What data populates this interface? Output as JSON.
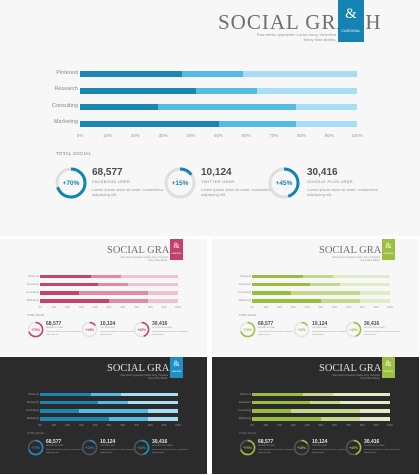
{
  "title": "SOCIAL GRAPH",
  "subtitle": "Raw denim typewriter Carles irony, Helvetica Teeny Nice Bobby.",
  "badge": {
    "symbol": "&",
    "name": "CARDINAL"
  },
  "rows": [
    "Pinterest",
    "Research",
    "Consulting",
    "Marketing"
  ],
  "ticks": [
    "0%",
    "10%",
    "20%",
    "30%",
    "40%",
    "50%",
    "60%",
    "70%",
    "80%",
    "90%",
    "100%"
  ],
  "section_title": "TOTAL SOCIAL",
  "stats": [
    {
      "pct": "+70%",
      "ring_fill": 0.7,
      "number": "68,577",
      "label": "FACEBOOK USER",
      "desc": "Lorem ipsum dolor sit amet, consectetur adipiscing elit."
    },
    {
      "pct": "+15%",
      "ring_fill": 0.15,
      "number": "10,124",
      "label": "TWITTER USER",
      "desc": "Lorem ipsum dolor sit amet, consectetur adipiscing elit."
    },
    {
      "pct": "+45%",
      "ring_fill": 0.45,
      "number": "30,416",
      "label": "GOOGLE PLUS USER",
      "desc": "Lorem ipsum dolor sit amet, consectetur adipiscing elit."
    }
  ],
  "chart_data": {
    "type": "bar",
    "orientation": "horizontal",
    "stacked": true,
    "categories": [
      "Pinterest",
      "Research",
      "Consulting",
      "Marketing"
    ],
    "series": [
      {
        "values": [
          37,
          42,
          28,
          50
        ]
      },
      {
        "values": [
          22,
          22,
          50,
          28
        ]
      },
      {
        "values": [
          41,
          36,
          22,
          22
        ]
      }
    ],
    "xlim": [
      0,
      100
    ],
    "xticks": [
      "0%",
      "10%",
      "20%",
      "30%",
      "40%",
      "50%",
      "60%",
      "70%",
      "80%",
      "90%",
      "100%"
    ]
  },
  "themes": {
    "main": {
      "accent": "#1582b4",
      "seg": [
        "#1b86b3",
        "#52bbe6",
        "#a7def5"
      ],
      "ring_track": "#dedede"
    },
    "pink": {
      "accent": "#c5416b",
      "seg": [
        "#c2456c",
        "#e08aa5",
        "#f0c3d1"
      ],
      "ring_track": "#e4e4e4"
    },
    "green": {
      "accent": "#9dbf3f",
      "seg": [
        "#9bbd3f",
        "#c4d98a",
        "#e2ecc4"
      ],
      "ring_track": "#e4e4e4"
    },
    "darkblue": {
      "accent": "#1e8fc4",
      "seg": [
        "#1b86b3",
        "#52bbe6",
        "#a7def5"
      ],
      "ring_track": "#555555"
    },
    "darkgreen": {
      "accent": "#9dbf3f",
      "seg": [
        "#9bbd3f",
        "#c4d98a",
        "#e2ecc4"
      ],
      "ring_track": "#555555"
    }
  }
}
